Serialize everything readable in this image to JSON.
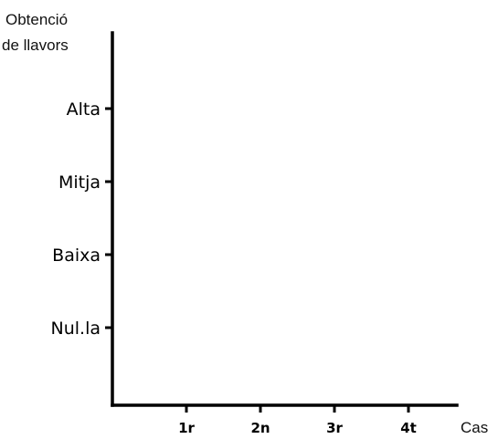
{
  "chart_data": {
    "type": "line",
    "title": "",
    "ylabel": [
      "Obtenció",
      "de llavors"
    ],
    "xlabel": "Cas",
    "categories": [
      "1r",
      "2n",
      "3r",
      "4t"
    ],
    "y_categories": [
      "Nul.la",
      "Baixa",
      "Mitja",
      "Alta"
    ],
    "series": [],
    "grid": false
  }
}
